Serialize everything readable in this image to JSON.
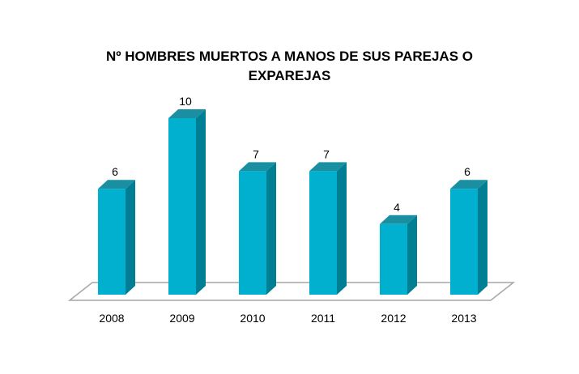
{
  "chart_data": {
    "type": "bar",
    "title_lines": [
      "Nº HOMBRES MUERTOS A MANOS DE SUS PAREJAS O",
      "EXPAREJAS"
    ],
    "title": "Nº HOMBRES MUERTOS A MANOS DE SUS PAREJAS O EXPAREJAS",
    "categories": [
      "2008",
      "2009",
      "2010",
      "2011",
      "2012",
      "2013"
    ],
    "values": [
      6,
      10,
      7,
      7,
      4,
      6
    ],
    "data_labels": [
      "6",
      "10",
      "7",
      "7",
      "4",
      "6"
    ],
    "xlabel": "",
    "ylabel": "",
    "ylim": [
      0,
      10
    ],
    "grid": false,
    "legend": "none",
    "colors": {
      "bar_front": "#00B0CE",
      "bar_side": "#007F94",
      "bar_top": "#1A8FA2",
      "floor_stroke": "#A6A6A6",
      "floor_fill": "#FFFFFF"
    }
  }
}
